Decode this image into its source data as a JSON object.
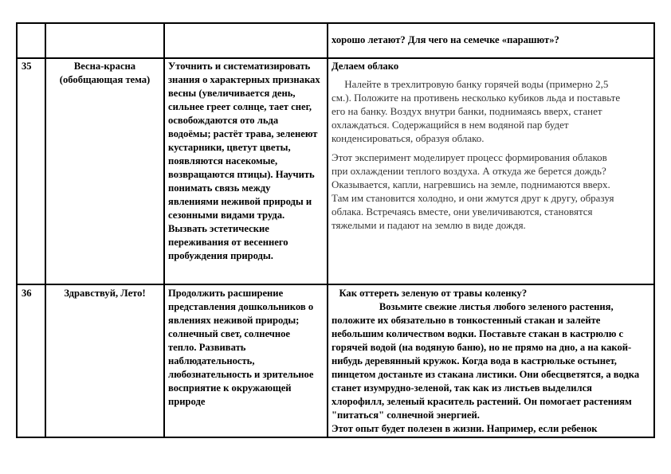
{
  "rows": [
    {
      "number": "",
      "theme": [],
      "goals": [],
      "experiment_title": "",
      "experiment_lines": [
        "хорошо летают? Для чего на семечке «парашют»?"
      ],
      "experiment_lines2": []
    },
    {
      "number": "35",
      "theme": [
        "Весна-красна",
        "(обобщающая тема)"
      ],
      "goals": [
        "Уточнить и систематизировать",
        "знания о характерных признаках",
        "весны (увеличивается день,",
        "сильнее греет солнце, тает снег,",
        "освобождаются ото льда",
        "водоёмы; растёт трава, зеленеют",
        "кустарники, цветут цветы,",
        "появляются насекомые,",
        "возвращаются птицы). Научить",
        "понимать связь между",
        "явлениями неживой природы и",
        "сезонными видами труда.",
        "Вызвать эстетические",
        "переживания от весеннего",
        "пробуждения природы."
      ],
      "experiment_title": "Делаем облако",
      "experiment_lines": [
        "     Налейте в трехлитровую банку горячей воды (примерно 2,5",
        "см.). Положите на противень несколько кубиков льда и поставьте",
        "его на банку. Воздух внутри банки, поднимаясь вверх, станет",
        "охлаждаться. Содержащийся в нем водяной пар будет",
        "конденсироваться, образуя облако."
      ],
      "experiment_lines2": [
        "Этот эксперимент моделирует процесс формирования облаков",
        "при охлаждении теплого воздуха. А откуда же берется дождь?",
        "Оказывается, капли, нагревшись на земле, поднимаются вверх.",
        "Там им становится холодно, и они жмутся друг к другу, образуя",
        "облака. Встречаясь вместе, они увеличиваются, становятся",
        "тяжелыми и падают на землю в виде дождя."
      ]
    },
    {
      "number": "36",
      "theme": [
        "Здравствуй, Лето!"
      ],
      "goals": [
        "Продолжить расширение",
        "представления дошкольников о",
        "явлениях неживой природы;",
        "солнечный свет, солнечное",
        "тепло. Развивать",
        "наблюдательность,",
        "любознательность и зрительное",
        "восприятие к окружающей",
        "природе"
      ],
      "experiment_title": "   Как оттереть зеленую от травы коленку?",
      "experiment_lines": [
        "                   Возьмите свежие листья любого зеленого растения,",
        "положите их обязательно в тонкостенный стакан и залейте",
        "небольшим количеством водки. Поставьте стакан в кастрюлю с",
        "горячей водой (на водяную баню), но не прямо на дно, а на какой-",
        "нибудь деревянный кружок. Когда вода в кастрюльке остынет,",
        "пинцетом достаньте из стакана листики. Они обесцветятся, а водка",
        "станет изумрудно-зеленой, так как из листьев выделился",
        "хлорофилл, зеленый краситель растений. Он помогает растениям",
        "\"питаться\" солнечной энергией.",
        "Этот опыт будет полезен в жизни. Например, если ребенок"
      ],
      "experiment_lines2": []
    }
  ]
}
